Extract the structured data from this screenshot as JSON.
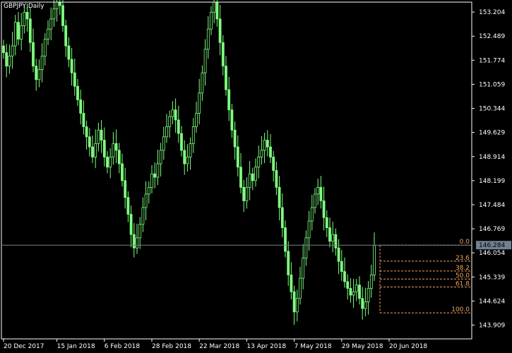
{
  "symbol_label": "GBPJPY,Daily",
  "colors": {
    "background": "#000000",
    "candle": "#7fff7f",
    "axis": "#ffffff",
    "bid_line": "#708090",
    "fib": "#f4a460"
  },
  "chart_data": {
    "type": "candlestick",
    "y_ticks": [
      153.204,
      152.489,
      151.774,
      151.059,
      150.344,
      149.629,
      148.914,
      148.199,
      147.484,
      146.769,
      146.054,
      145.339,
      144.624,
      143.909
    ],
    "ylim": [
      143.5,
      153.5
    ],
    "x_ticks": [
      {
        "label": "20 Dec 2017",
        "index": 0
      },
      {
        "label": "15 Jan 2018",
        "index": 18
      },
      {
        "label": "6 Feb 2018",
        "index": 34
      },
      {
        "label": "28 Feb 2018",
        "index": 50
      },
      {
        "label": "22 Mar 2018",
        "index": 66
      },
      {
        "label": "13 Apr 2018",
        "index": 82
      },
      {
        "label": "7 May 2018",
        "index": 98
      },
      {
        "label": "29 May 2018",
        "index": 114
      },
      {
        "label": "20 Jun 2018",
        "index": 130
      }
    ],
    "current_price": "146.284",
    "current_price_value": 146.284,
    "closes": [
      152.0,
      151.6,
      151.9,
      152.2,
      152.9,
      152.4,
      152.8,
      153.2,
      153.0,
      152.3,
      151.6,
      151.2,
      151.5,
      151.9,
      152.4,
      152.7,
      153.0,
      153.3,
      153.5,
      153.4,
      152.8,
      152.2,
      151.8,
      151.4,
      151.0,
      150.6,
      150.2,
      149.8,
      149.5,
      149.2,
      148.9,
      149.3,
      149.7,
      149.4,
      148.9,
      148.6,
      148.9,
      149.3,
      149.1,
      148.7,
      148.2,
      147.7,
      147.2,
      146.6,
      146.2,
      146.5,
      146.9,
      147.4,
      147.8,
      148.0,
      148.4,
      148.3,
      148.7,
      149.1,
      149.5,
      149.8,
      150.1,
      150.3,
      150.0,
      149.6,
      149.1,
      148.7,
      148.9,
      149.3,
      149.8,
      150.2,
      150.8,
      151.4,
      152.1,
      152.7,
      153.2,
      153.5,
      153.0,
      152.3,
      151.6,
      150.9,
      150.3,
      149.7,
      149.2,
      148.6,
      148.0,
      147.6,
      148.0,
      148.4,
      148.2,
      148.6,
      148.9,
      149.1,
      149.4,
      149.2,
      148.9,
      148.5,
      148.0,
      147.4,
      146.8,
      146.1,
      145.4,
      144.9,
      144.3,
      144.7,
      145.3,
      145.9,
      146.5,
      147.0,
      147.4,
      147.8,
      148.0,
      147.6,
      147.1,
      146.8,
      146.4,
      146.6,
      146.2,
      145.8,
      145.5,
      145.2,
      145.0,
      144.8,
      144.9,
      145.1,
      144.7,
      144.4,
      144.6,
      145.0,
      145.4,
      146.28
    ],
    "fibonacci": {
      "levels": [
        {
          "label": "0.0",
          "price": 146.284
        },
        {
          "label": "23.6",
          "price": 145.809
        },
        {
          "label": "38.2",
          "price": 145.515
        },
        {
          "label": "50.0",
          "price": 145.277
        },
        {
          "label": "61.8",
          "price": 145.04
        },
        {
          "label": "100.0",
          "price": 144.273
        }
      ]
    }
  }
}
